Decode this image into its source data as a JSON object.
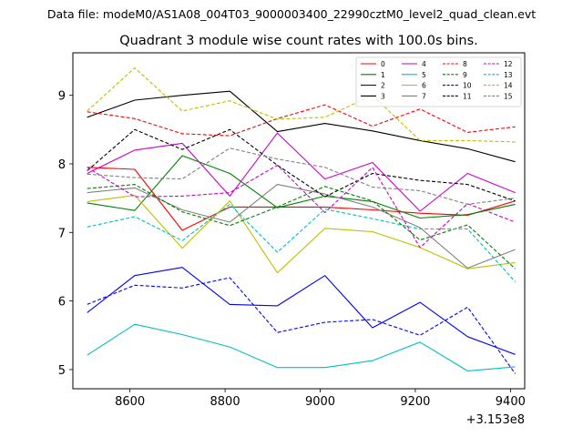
{
  "chart_data": {
    "type": "line",
    "suptitle": "Data file: modeM0/AS1A08_004T03_9000003400_22990cztM0_level2_quad_clean.evt",
    "title": "Quadrant 3 module wise count rates with 100.0s bins.",
    "xlabel": "",
    "ylabel": "",
    "x_offset_label": "+3.153e8",
    "x": [
      8510,
      8610,
      8710,
      8810,
      8910,
      9010,
      9110,
      9210,
      9310,
      9410
    ],
    "xlim": [
      8480,
      9430
    ],
    "ylim": [
      4.72,
      9.62
    ],
    "xticks": [
      8600,
      8800,
      9000,
      9200,
      9400
    ],
    "xtick_labels": [
      "8600",
      "8800",
      "9000",
      "9200",
      "9400"
    ],
    "yticks": [
      5,
      6,
      7,
      8,
      9
    ],
    "ytick_labels": [
      "5",
      "6",
      "7",
      "8",
      "9"
    ],
    "grid": false,
    "legend_position": "top-right",
    "legend_columns": 4,
    "series": [
      {
        "name": "0",
        "color": "#ff0000",
        "dash": "solid",
        "values": [
          7.95,
          7.92,
          7.03,
          7.37,
          7.37,
          7.37,
          7.33,
          7.28,
          7.25,
          7.46
        ]
      },
      {
        "name": "1",
        "color": "#008000",
        "dash": "solid",
        "values": [
          7.43,
          7.32,
          8.12,
          7.86,
          7.36,
          7.53,
          7.45,
          7.21,
          7.26,
          7.41
        ]
      },
      {
        "name": "2",
        "color": "#0000ff",
        "dash": "solid",
        "values": [
          5.83,
          6.37,
          6.49,
          5.95,
          5.93,
          6.37,
          5.61,
          5.98,
          5.48,
          5.22
        ]
      },
      {
        "name": "3",
        "color": "#000000",
        "dash": "solid",
        "values": [
          8.68,
          8.93,
          9.0,
          9.06,
          8.47,
          8.59,
          8.48,
          8.34,
          8.22,
          8.03
        ]
      },
      {
        "name": "4",
        "color": "#cc00cc",
        "dash": "solid",
        "values": [
          7.86,
          8.2,
          8.3,
          7.53,
          8.45,
          7.78,
          8.02,
          7.31,
          7.86,
          7.58
        ]
      },
      {
        "name": "5",
        "color": "#00bfbf",
        "dash": "solid",
        "values": [
          5.21,
          5.66,
          5.51,
          5.33,
          5.03,
          5.03,
          5.13,
          5.4,
          4.98,
          5.04
        ]
      },
      {
        "name": "6",
        "color": "#bfbf00",
        "dash": "solid",
        "values": [
          7.45,
          7.54,
          6.77,
          7.46,
          6.41,
          7.06,
          7.01,
          6.78,
          6.47,
          6.56
        ]
      },
      {
        "name": "7",
        "color": "#808080",
        "dash": "solid",
        "values": [
          7.58,
          7.65,
          7.33,
          7.15,
          7.7,
          7.56,
          7.37,
          7.07,
          6.48,
          6.75
        ]
      },
      {
        "name": "8",
        "color": "#ff0000",
        "dash": "dashed",
        "values": [
          8.76,
          8.66,
          8.44,
          8.41,
          8.66,
          8.86,
          8.55,
          8.8,
          8.46,
          8.54
        ]
      },
      {
        "name": "9",
        "color": "#008000",
        "dash": "dashed",
        "values": [
          7.64,
          7.7,
          7.3,
          7.1,
          7.37,
          7.67,
          7.46,
          6.89,
          7.11,
          6.47
        ]
      },
      {
        "name": "10",
        "color": "#0000ff",
        "dash": "dashed",
        "values": [
          5.95,
          6.23,
          6.19,
          6.34,
          5.54,
          5.69,
          5.73,
          5.5,
          5.91,
          4.94
        ]
      },
      {
        "name": "11",
        "color": "#000000",
        "dash": "dashed",
        "values": [
          7.9,
          8.5,
          8.21,
          8.5,
          7.98,
          7.52,
          7.86,
          7.76,
          7.7,
          7.46
        ]
      },
      {
        "name": "12",
        "color": "#cc00cc",
        "dash": "dashed",
        "values": [
          7.95,
          7.52,
          7.53,
          7.58,
          7.98,
          7.29,
          7.95,
          6.78,
          7.42,
          7.15
        ]
      },
      {
        "name": "13",
        "color": "#00bfbf",
        "dash": "dashed",
        "values": [
          7.08,
          7.23,
          6.88,
          7.41,
          6.71,
          7.34,
          7.2,
          7.05,
          7.05,
          6.28
        ]
      },
      {
        "name": "14",
        "color": "#bfbf00",
        "dash": "dashed",
        "values": [
          8.77,
          9.4,
          8.77,
          8.92,
          8.65,
          8.68,
          9.0,
          8.34,
          8.34,
          8.32
        ]
      },
      {
        "name": "15",
        "color": "#808080",
        "dash": "dashed",
        "values": [
          7.85,
          7.8,
          7.78,
          8.23,
          8.07,
          7.95,
          7.66,
          7.61,
          7.41,
          7.5
        ]
      }
    ]
  }
}
